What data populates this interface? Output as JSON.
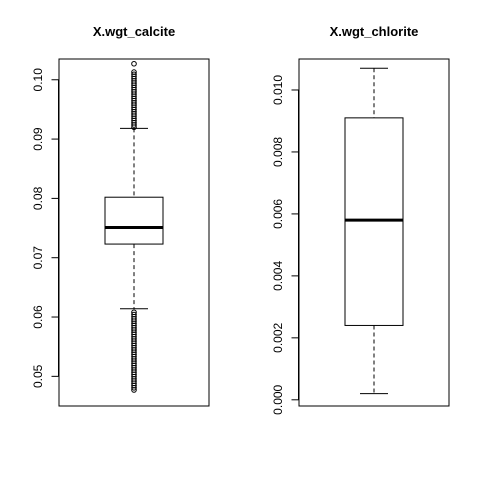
{
  "chart_data": [
    {
      "type": "boxplot",
      "title": "X.wgt_calcite",
      "xlabel": "",
      "ylabel": "",
      "ylim": [
        0.045,
        0.1035
      ],
      "yticks": [
        0.05,
        0.06,
        0.07,
        0.08,
        0.09,
        0.1
      ],
      "ytick_labels": [
        "0.05",
        "0.06",
        "0.07",
        "0.08",
        "0.09",
        "0.10"
      ],
      "stats": {
        "whisker_low": 0.0614,
        "q1": 0.0723,
        "median": 0.0751,
        "q3": 0.0802,
        "whisker_high": 0.0918
      },
      "outliers_low_range": [
        0.0477,
        0.0608
      ],
      "outliers_high_range": [
        0.092,
        0.1013
      ],
      "outlier_max": 0.1027,
      "grid": false
    },
    {
      "type": "boxplot",
      "title": "X.wgt_chlorite",
      "xlabel": "",
      "ylabel": "",
      "ylim": [
        -0.0002,
        0.011
      ],
      "yticks": [
        0.0,
        0.002,
        0.004,
        0.006,
        0.008,
        0.01
      ],
      "ytick_labels": [
        "0.000",
        "0.002",
        "0.004",
        "0.006",
        "0.008",
        "0.010"
      ],
      "stats": {
        "whisker_low": 0.0002,
        "q1": 0.0024,
        "median": 0.0058,
        "q3": 0.0091,
        "whisker_high": 0.0107
      },
      "grid": false
    }
  ]
}
